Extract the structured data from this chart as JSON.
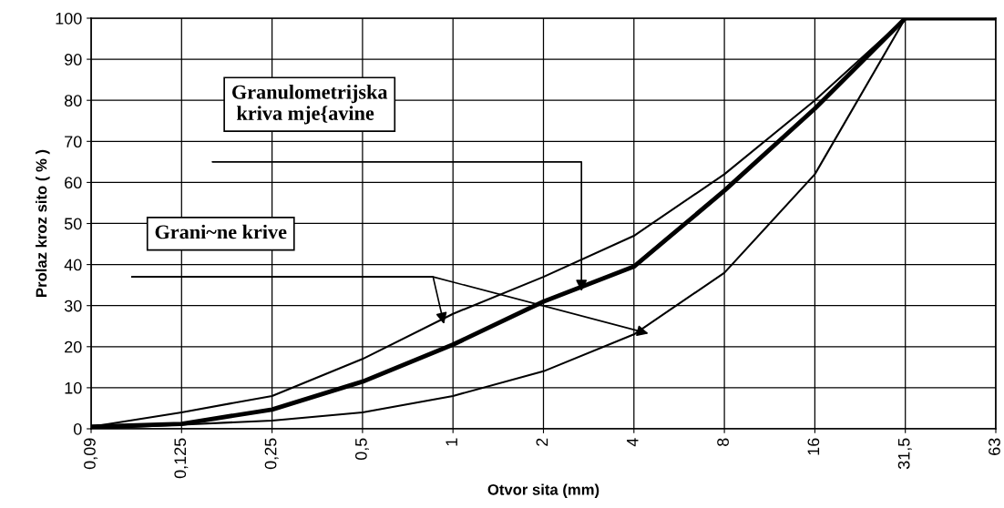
{
  "chart_data": {
    "type": "line",
    "xlabel": "Otvor sita (mm)",
    "ylabel": "Prolaz kroz sito ( % )",
    "categories": [
      "0,09",
      "0,125",
      "0,25",
      "0,5",
      "1",
      "2",
      "4",
      "8",
      "16",
      "31,5",
      "63"
    ],
    "series": [
      {
        "color": "#000000",
        "values": [
          0.5,
          4,
          8,
          17,
          28,
          37,
          47,
          62,
          80,
          100,
          100
        ]
      },
      {
        "color": "#000000",
        "values": [
          0.5,
          1.2,
          4.7,
          11.5,
          20.5,
          31,
          39.5,
          58,
          78,
          100,
          100
        ]
      },
      {
        "color": "#000000",
        "values": [
          0,
          1,
          2,
          4,
          8,
          14,
          23,
          38,
          62,
          100,
          100
        ]
      }
    ],
    "annotations": [
      "Granulometrijska\n kriva mje{avine",
      "Grani~ne krive"
    ],
    "ylim": [
      0,
      100
    ],
    "yticks": [
      0,
      10,
      20,
      30,
      40,
      50,
      60,
      70,
      80,
      90,
      100
    ],
    "grid": true,
    "legend": false,
    "marker": "none",
    "line_style": "solid"
  }
}
